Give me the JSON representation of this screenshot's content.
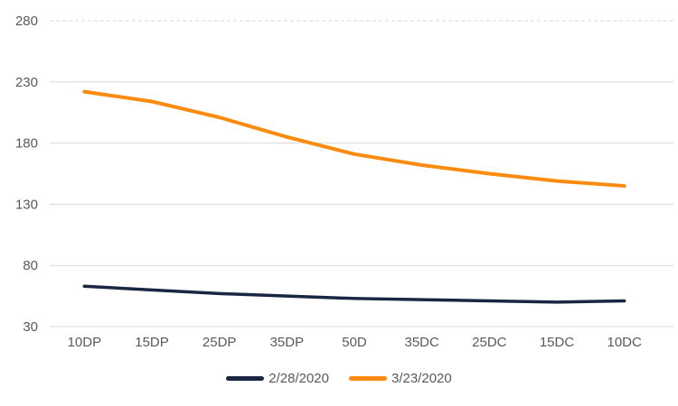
{
  "chart_data": {
    "type": "line",
    "title": "",
    "xlabel": "",
    "ylabel": "",
    "categories": [
      "10DP",
      "15DP",
      "25DP",
      "35DP",
      "50D",
      "35DC",
      "25DC",
      "15DC",
      "10DC"
    ],
    "series": [
      {
        "name": "2/28/2020",
        "color": "#1A2742",
        "stroke_width": 3.5,
        "values": [
          63,
          60,
          57,
          55,
          53,
          52,
          51,
          50,
          51
        ]
      },
      {
        "name": "3/23/2020",
        "color": "#F98C0F",
        "stroke_width": 4,
        "values": [
          222,
          214,
          201,
          185,
          171,
          162,
          155,
          149,
          145
        ]
      }
    ],
    "ylim": [
      30,
      280
    ],
    "yticks": [
      30,
      80,
      130,
      180,
      230,
      280
    ],
    "grid": "horizontal",
    "gridline_color": "#D9D9D9",
    "top_gridline_style": "dashed",
    "axis_text_color": "#595959",
    "legend_position": "bottom-center",
    "legend": [
      "2/28/2020",
      "3/23/2020"
    ],
    "background": "#FFFFFF"
  }
}
